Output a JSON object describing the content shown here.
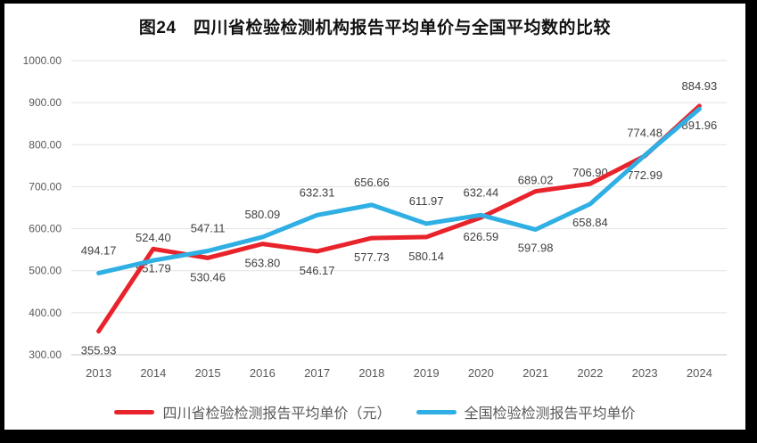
{
  "chart_data": {
    "type": "line",
    "title": "图24　四川省检验检测机构报告平均单价与全国平均数的比较",
    "categories": [
      "2013",
      "2014",
      "2015",
      "2016",
      "2017",
      "2018",
      "2019",
      "2020",
      "2021",
      "2022",
      "2023",
      "2024"
    ],
    "series": [
      {
        "name": "四川省检验检测报告平均单价（元）",
        "color": "#e8232b",
        "values": [
          355.93,
          551.79,
          530.46,
          563.8,
          546.17,
          577.73,
          580.14,
          626.59,
          689.02,
          706.9,
          772.99,
          891.96
        ],
        "label_pos": [
          "below",
          "below",
          "below",
          "below",
          "below",
          "below",
          "below",
          "below",
          "above",
          "above",
          "below",
          "below"
        ]
      },
      {
        "name": "全国检验检测报告平均单价",
        "color": "#2fafe3",
        "values": [
          494.17,
          524.4,
          547.11,
          580.09,
          632.31,
          656.66,
          611.97,
          632.44,
          597.98,
          658.84,
          774.48,
          884.93
        ],
        "label_pos": [
          "above",
          "above",
          "above",
          "above",
          "above",
          "above",
          "above",
          "above",
          "below",
          "below",
          "above",
          "above"
        ]
      }
    ],
    "ylim": [
      300,
      1000
    ],
    "yticks": [
      {
        "v": 1000,
        "label": "1000.00"
      },
      {
        "v": 900,
        "label": "900.00"
      },
      {
        "v": 800,
        "label": "800.00"
      },
      {
        "v": 700,
        "label": "700.00"
      },
      {
        "v": 600,
        "label": "600.00"
      },
      {
        "v": 500,
        "label": "500.00"
      },
      {
        "v": 400,
        "label": "400.00"
      },
      {
        "v": 300,
        "label": "300.00"
      }
    ],
    "value_format": "2dp",
    "grid": true,
    "legend_position": "bottom",
    "background": "#ffffff",
    "frame_color": "#000000"
  }
}
